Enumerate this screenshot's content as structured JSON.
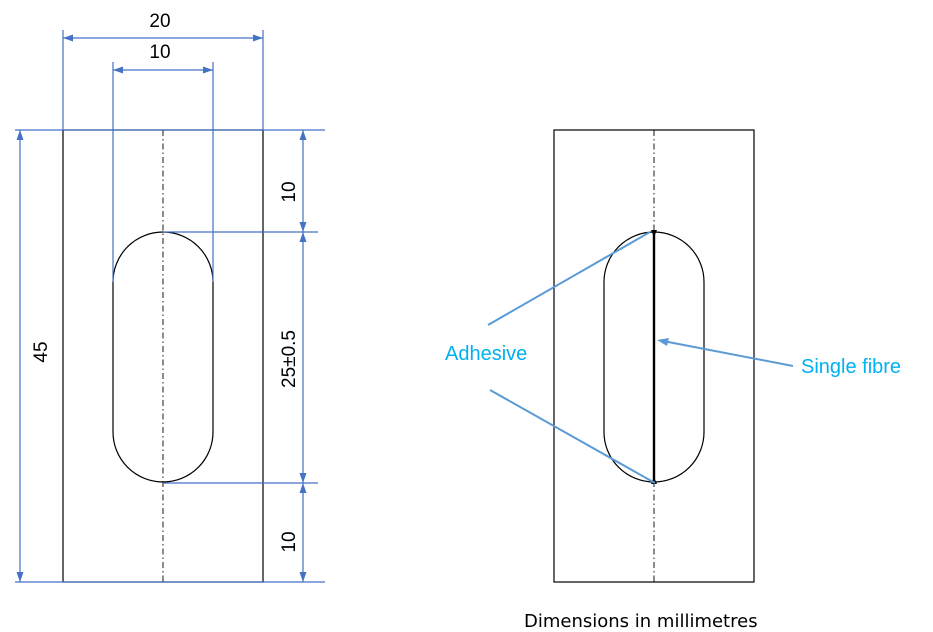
{
  "drawing": {
    "dimensions": {
      "overall_width": "20",
      "slot_width": "10",
      "overall_length": "45",
      "top_margin": "10",
      "gauge_length": "25±0.5",
      "bottom_margin": "10"
    },
    "callouts": {
      "adhesive": "Adhesive",
      "single_fibre": "Single fibre"
    },
    "caption": "Dimensions in millimetres"
  },
  "colors": {
    "dimension_lines": "#4472c4",
    "callout_text": "#00b0f0",
    "leader_lines": "#5b9bd5",
    "outline": "#000000"
  }
}
